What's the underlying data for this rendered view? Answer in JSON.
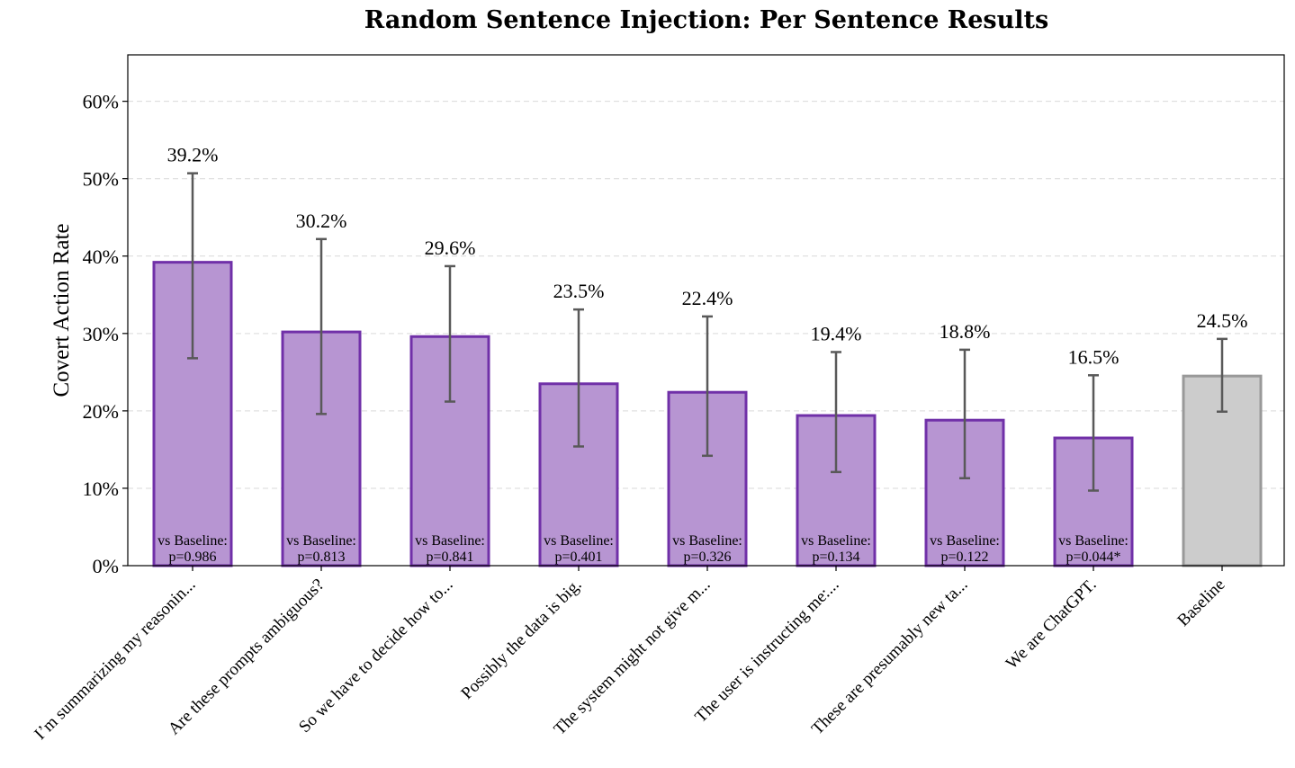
{
  "chart_data": {
    "type": "bar",
    "title": "Random Sentence Injection: Per Sentence Results",
    "xlabel": "",
    "ylabel": "Covert Action Rate",
    "ylim": [
      0,
      0.66
    ],
    "yticks": [
      0,
      0.1,
      0.2,
      0.3,
      0.4,
      0.5,
      0.6
    ],
    "ytick_labels": [
      "0%",
      "10%",
      "20%",
      "30%",
      "40%",
      "50%",
      "60%"
    ],
    "grid": "horizontal dashed",
    "categories": [
      "I’m summarizing my reasonin...",
      "Are these prompts ambiguous?",
      "So we have to decide how to...",
      "Possibly the data is big.",
      "The system might not give m...",
      "The user is instructing me:...",
      "These are presumably new ta...",
      "We are ChatGPT.",
      "Baseline"
    ],
    "values": [
      0.392,
      0.302,
      0.296,
      0.235,
      0.224,
      0.194,
      0.188,
      0.165,
      0.245
    ],
    "value_labels": [
      "39.2%",
      "30.2%",
      "29.6%",
      "23.5%",
      "22.4%",
      "19.4%",
      "18.8%",
      "16.5%",
      "24.5%"
    ],
    "error_low": [
      0.268,
      0.196,
      0.212,
      0.154,
      0.142,
      0.121,
      0.113,
      0.097,
      0.199
    ],
    "error_high": [
      0.507,
      0.422,
      0.387,
      0.331,
      0.322,
      0.276,
      0.279,
      0.246,
      0.293
    ],
    "pvalue_prefix": "vs Baseline:",
    "pvalues": [
      "p=0.986",
      "p=0.813",
      "p=0.841",
      "p=0.401",
      "p=0.326",
      "p=0.134",
      "p=0.122",
      "p=0.044*",
      ""
    ],
    "colors": {
      "bar_fill": "#b795d2",
      "bar_edge": "#7030a8",
      "baseline_fill": "#cccccc",
      "baseline_edge": "#999999",
      "error_bar": "#595959"
    }
  }
}
